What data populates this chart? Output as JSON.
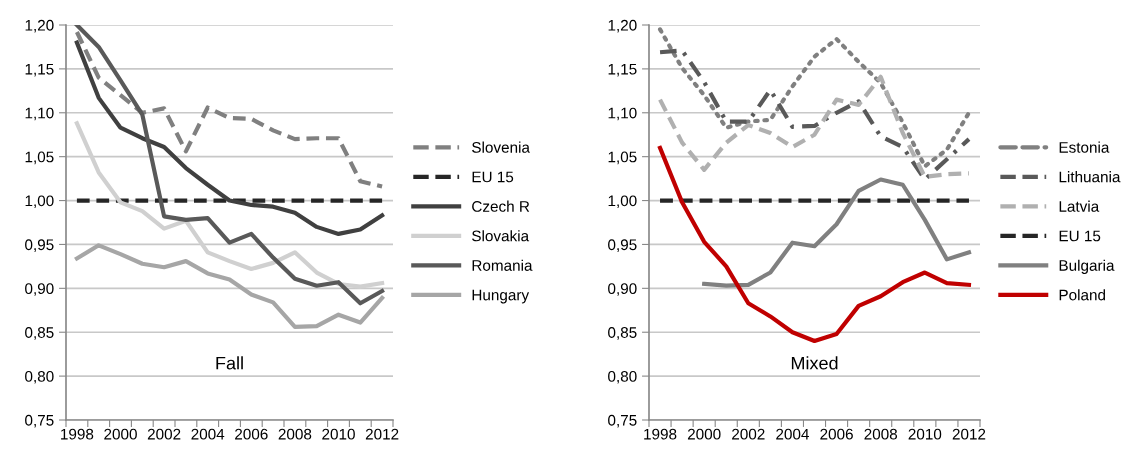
{
  "chart_data": [
    {
      "type": "line",
      "categories": [
        "1998",
        null,
        "2000",
        null,
        "2002",
        null,
        "2004",
        null,
        "2006",
        null,
        "2008",
        null,
        "2010",
        null,
        "2012"
      ],
      "ylim": [
        0.75,
        1.2
      ],
      "yticks": [
        {
          "value": 0.75,
          "label": "0,75"
        },
        {
          "value": 0.8,
          "label": "0,80"
        },
        {
          "value": 0.85,
          "label": "0,85"
        },
        {
          "value": 0.9,
          "label": "0,90"
        },
        {
          "value": 0.95,
          "label": "0,95"
        },
        {
          "value": 1.0,
          "label": "1,00"
        },
        {
          "value": 1.05,
          "label": "1,05"
        },
        {
          "value": 1.1,
          "label": "1,10"
        },
        {
          "value": 1.15,
          "label": "1,15"
        },
        {
          "value": 1.2,
          "label": "1,20"
        }
      ],
      "grid": "y",
      "legend": "right",
      "annotations": [
        "Fall"
      ],
      "series": [
        {
          "name": "Slovenia",
          "color": "#808080",
          "line_style": "dashed",
          "values": [
            1.192,
            1.14,
            1.12,
            1.1,
            1.105,
            1.056,
            1.106,
            1.094,
            1.093,
            1.08,
            1.07,
            1.071,
            1.071,
            1.022,
            1.016
          ]
        },
        {
          "name": "EU 15",
          "color": "#262626",
          "line_style": "dashed",
          "values": [
            1.0,
            1.0,
            1.0,
            1.0,
            1.0,
            1.0,
            1.0,
            1.0,
            1.0,
            1.0,
            1.0,
            1.0,
            1.0,
            1.0,
            1.0
          ]
        },
        {
          "name": "Czech R",
          "color": "#404040",
          "line_style": "solid",
          "values": [
            1.18,
            1.117,
            1.083,
            1.071,
            1.061,
            1.037,
            1.018,
            1.0,
            0.995,
            0.993,
            0.986,
            0.97,
            0.962,
            0.967,
            0.983
          ]
        },
        {
          "name": "Slovakia",
          "color": "#d0d0d0",
          "line_style": "solid",
          "values": [
            1.088,
            1.032,
            0.998,
            0.988,
            0.968,
            0.977,
            0.941,
            0.931,
            0.922,
            0.929,
            0.941,
            0.918,
            0.905,
            0.902,
            0.906
          ]
        },
        {
          "name": "Romania",
          "color": "#595959",
          "line_style": "solid",
          "values": [
            1.2,
            1.175,
            1.137,
            1.098,
            0.982,
            0.978,
            0.98,
            0.952,
            0.962,
            0.935,
            0.911,
            0.903,
            0.907,
            0.883,
            0.897
          ]
        },
        {
          "name": "Hungary",
          "color": "#a6a6a6",
          "line_style": "solid",
          "values": [
            0.934,
            0.949,
            0.939,
            0.928,
            0.924,
            0.931,
            0.917,
            0.91,
            0.893,
            0.884,
            0.856,
            0.857,
            0.87,
            0.861,
            0.889
          ]
        }
      ]
    },
    {
      "type": "line",
      "categories": [
        "1998",
        null,
        "2000",
        null,
        "2002",
        null,
        "2004",
        null,
        "2006",
        null,
        "2008",
        null,
        "2010",
        null,
        "2012"
      ],
      "ylim": [
        0.75,
        1.2
      ],
      "yticks": [
        {
          "value": 0.75,
          "label": "0,75"
        },
        {
          "value": 0.8,
          "label": "0,80"
        },
        {
          "value": 0.85,
          "label": "0,85"
        },
        {
          "value": 0.9,
          "label": "0,90"
        },
        {
          "value": 0.95,
          "label": "0,95"
        },
        {
          "value": 1.0,
          "label": "1,00"
        },
        {
          "value": 1.05,
          "label": "1,05"
        },
        {
          "value": 1.1,
          "label": "1,10"
        },
        {
          "value": 1.15,
          "label": "1,15"
        },
        {
          "value": 1.2,
          "label": "1,20"
        }
      ],
      "grid": "y",
      "legend": "right",
      "annotations": [
        "Mixed"
      ],
      "series": [
        {
          "name": "Estonia",
          "color": "#808080",
          "line_style": "dotted",
          "values": [
            1.195,
            1.151,
            1.12,
            1.083,
            1.09,
            1.092,
            1.13,
            1.164,
            1.184,
            1.158,
            1.134,
            1.089,
            1.039,
            1.058,
            1.1
          ]
        },
        {
          "name": "Lithuania",
          "color": "#595959",
          "line_style": "dashdot",
          "values": [
            1.169,
            1.171,
            1.135,
            1.09,
            1.09,
            1.126,
            1.084,
            1.085,
            1.1,
            1.113,
            1.073,
            1.061,
            1.024,
            1.047,
            1.07
          ]
        },
        {
          "name": "Latvia",
          "color": "#b0b0b0",
          "line_style": "dashed",
          "values": [
            1.115,
            1.066,
            1.035,
            1.066,
            1.086,
            1.077,
            1.061,
            1.075,
            1.115,
            1.109,
            1.141,
            1.077,
            1.027,
            1.03,
            1.031
          ]
        },
        {
          "name": "EU 15",
          "color": "#262626",
          "line_style": "dashed",
          "values": [
            1.0,
            1.0,
            1.0,
            1.0,
            1.0,
            1.0,
            1.0,
            1.0,
            1.0,
            1.0,
            1.0,
            1.0,
            1.0,
            1.0,
            1.0
          ]
        },
        {
          "name": "Bulgaria",
          "color": "#808080",
          "line_style": "solid",
          "values": [
            null,
            null,
            0.905,
            0.903,
            0.904,
            0.918,
            0.952,
            0.948,
            0.973,
            1.011,
            1.024,
            1.018,
            0.978,
            0.933,
            0.941
          ]
        },
        {
          "name": "Poland",
          "color": "#c00000",
          "line_style": "solid",
          "values": [
            1.06,
            0.998,
            0.953,
            0.925,
            0.883,
            0.868,
            0.85,
            0.84,
            0.848,
            0.88,
            0.891,
            0.907,
            0.918,
            0.906,
            0.904
          ]
        }
      ]
    }
  ]
}
